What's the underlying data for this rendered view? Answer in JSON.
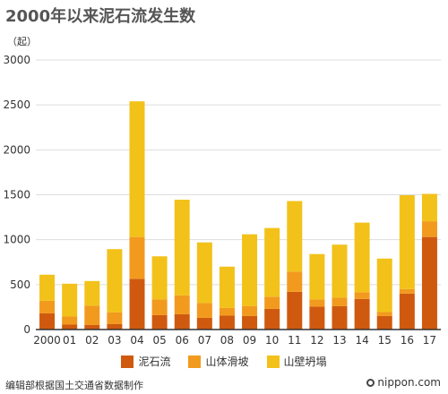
{
  "title": "2000年以来泥石流发生数",
  "unit": "（起）",
  "source": "编辑部根据国土交通省数据制作",
  "brand": "nippon.com",
  "colors": {
    "debris": "#cf5a0f",
    "slide": "#f29a1e",
    "collapse": "#f2c21a",
    "grid": "#dddddd",
    "axis": "#333333"
  },
  "chart_data": {
    "type": "bar",
    "stacked": true,
    "categories": [
      "2000",
      "01",
      "02",
      "03",
      "04",
      "05",
      "06",
      "07",
      "08",
      "09",
      "10",
      "11",
      "12",
      "13",
      "14",
      "15",
      "16",
      "17"
    ],
    "series": [
      {
        "name": "泥石流",
        "values": [
          180,
          55,
          50,
          60,
          565,
          160,
          170,
          130,
          155,
          150,
          230,
          420,
          255,
          260,
          340,
          150,
          400,
          1030
        ]
      },
      {
        "name": "山体滑坡",
        "values": [
          140,
          90,
          215,
          130,
          465,
          175,
          210,
          165,
          85,
          110,
          135,
          225,
          80,
          95,
          75,
          45,
          50,
          175
        ]
      },
      {
        "name": "山壁坍塌",
        "values": [
          290,
          365,
          275,
          705,
          1510,
          480,
          1065,
          675,
          460,
          800,
          765,
          785,
          505,
          590,
          775,
          595,
          1045,
          305
        ]
      }
    ],
    "y_ticks": [
      "0",
      "500",
      "1000",
      "1500",
      "2000",
      "2500",
      "3000"
    ],
    "ylim": [
      0,
      3000
    ]
  }
}
